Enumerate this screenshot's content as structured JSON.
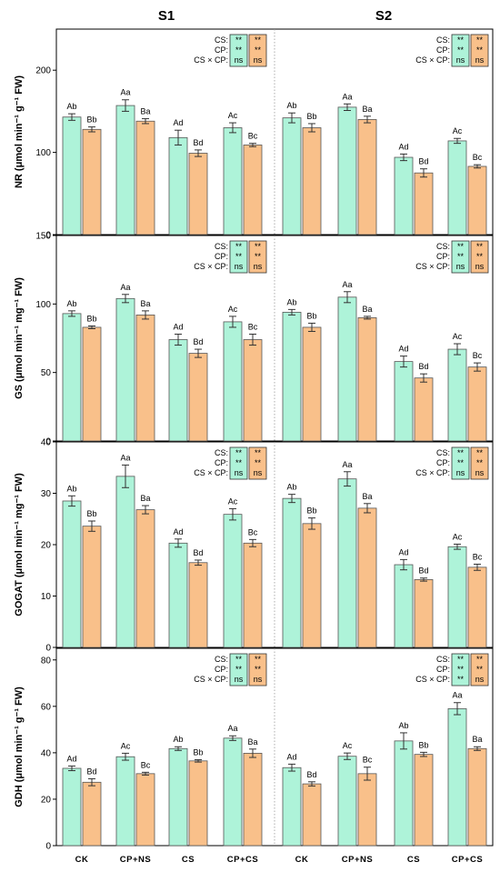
{
  "scenarios": [
    "S1",
    "S2"
  ],
  "categories": [
    "CK",
    "CP+NS",
    "CS",
    "CP+CS"
  ],
  "colors": {
    "series1": "#aef3d9",
    "series2": "#f9c08a",
    "series1_box": "#aef3d9",
    "series2_box": "#f9c08a"
  },
  "chart_data": [
    {
      "type": "bar",
      "ylabel": "NR (μmol min⁻¹ g⁻¹ FW)",
      "ylim": [
        0,
        250
      ],
      "yticks": [
        0,
        100,
        200
      ],
      "significance": {
        "labels": [
          "CS:",
          "CP:",
          "CS × CP:"
        ],
        "S1": {
          "series1": [
            "**",
            "**",
            "ns"
          ],
          "series2": [
            "**",
            "**",
            "ns"
          ]
        },
        "S2": {
          "series1": [
            "**",
            "**",
            "ns"
          ],
          "series2": [
            "**",
            "**",
            "ns"
          ]
        }
      },
      "S1": {
        "series1": {
          "values": [
            143,
            157,
            118,
            130
          ],
          "err": [
            4,
            7,
            9,
            6
          ],
          "labels": [
            "Ab",
            "Aa",
            "Ad",
            "Ac"
          ]
        },
        "series2": {
          "values": [
            128,
            138,
            99,
            109
          ],
          "err": [
            3,
            3,
            4,
            2
          ],
          "labels": [
            "Bb",
            "Ba",
            "Bd",
            "Bc"
          ]
        }
      },
      "S2": {
        "series1": {
          "values": [
            142,
            155,
            94,
            114
          ],
          "err": [
            6,
            4,
            4,
            3
          ],
          "labels": [
            "Ab",
            "Aa",
            "Ad",
            "Ac"
          ]
        },
        "series2": {
          "values": [
            130,
            140,
            75,
            83
          ],
          "err": [
            5,
            4,
            5,
            2
          ],
          "labels": [
            "Bb",
            "Ba",
            "Bd",
            "Bc"
          ]
        }
      }
    },
    {
      "type": "bar",
      "ylabel": "GS (μmol min⁻¹ mg⁻¹ FW)",
      "ylim": [
        0,
        150
      ],
      "yticks": [
        0,
        50,
        100,
        150
      ],
      "significance": {
        "labels": [
          "CS:",
          "CP:",
          "CS × CP:"
        ],
        "S1": {
          "series1": [
            "**",
            "**",
            "ns"
          ],
          "series2": [
            "**",
            "**",
            "ns"
          ]
        },
        "S2": {
          "series1": [
            "**",
            "**",
            "ns"
          ],
          "series2": [
            "**",
            "**",
            "ns"
          ]
        }
      },
      "S1": {
        "series1": {
          "values": [
            93,
            104,
            74,
            87
          ],
          "err": [
            2,
            3,
            4,
            4
          ],
          "labels": [
            "Ab",
            "Aa",
            "Ad",
            "Ac"
          ]
        },
        "series2": {
          "values": [
            83,
            92,
            64,
            74
          ],
          "err": [
            1,
            3,
            3,
            4
          ],
          "labels": [
            "Bb",
            "Ba",
            "Bd",
            "Bc"
          ]
        }
      },
      "S2": {
        "series1": {
          "values": [
            94,
            105,
            58,
            67
          ],
          "err": [
            2,
            4,
            4,
            4
          ],
          "labels": [
            "Ab",
            "Aa",
            "Ad",
            "Ac"
          ]
        },
        "series2": {
          "values": [
            83,
            90,
            46,
            54
          ],
          "err": [
            3,
            1,
            3,
            3
          ],
          "labels": [
            "Bb",
            "Ba",
            "Bd",
            "Bc"
          ]
        }
      }
    },
    {
      "type": "bar",
      "ylabel": "GOGAT (μmol min⁻¹ mg⁻¹ FW)",
      "ylim": [
        0,
        40
      ],
      "yticks": [
        0,
        10,
        20,
        30,
        40
      ],
      "significance": {
        "labels": [
          "CS:",
          "CP:",
          "CS × CP:"
        ],
        "S1": {
          "series1": [
            "**",
            "**",
            "ns"
          ],
          "series2": [
            "**",
            "**",
            "ns"
          ]
        },
        "S2": {
          "series1": [
            "**",
            "**",
            "ns"
          ],
          "series2": [
            "**",
            "**",
            "ns"
          ]
        }
      },
      "S1": {
        "series1": {
          "values": [
            28.5,
            33.3,
            20.3,
            25.9
          ],
          "err": [
            1,
            2.2,
            0.8,
            1.1
          ],
          "labels": [
            "Ab",
            "Aa",
            "Ad",
            "Ac"
          ]
        },
        "series2": {
          "values": [
            23.6,
            26.8,
            16.5,
            20.3
          ],
          "err": [
            1,
            0.8,
            0.5,
            0.7
          ],
          "labels": [
            "Bb",
            "Ba",
            "Bd",
            "Bc"
          ]
        }
      },
      "S2": {
        "series1": {
          "values": [
            29.0,
            32.8,
            16.1,
            19.6
          ],
          "err": [
            0.8,
            1.4,
            1,
            0.5
          ],
          "labels": [
            "Ab",
            "Aa",
            "Ad",
            "Ac"
          ]
        },
        "series2": {
          "values": [
            24.1,
            27.1,
            13.2,
            15.6
          ],
          "err": [
            1.1,
            0.9,
            0.3,
            0.6
          ],
          "labels": [
            "Bb",
            "Ba",
            "Bd",
            "Bc"
          ]
        }
      }
    },
    {
      "type": "bar",
      "ylabel": "GDH (μmol min⁻¹ g⁻¹ FW)",
      "ylim": [
        0,
        85
      ],
      "yticks": [
        0,
        20,
        40,
        60,
        80
      ],
      "significance": {
        "labels": [
          "CS:",
          "CP:",
          "CS × CP:"
        ],
        "S1": {
          "series1": [
            "**",
            "**",
            "ns"
          ],
          "series2": [
            "**",
            "**",
            "ns"
          ]
        },
        "S2": {
          "series1": [
            "**",
            "**",
            "**"
          ],
          "series2": [
            "**",
            "**",
            "ns"
          ]
        }
      },
      "S1": {
        "series1": {
          "values": [
            33.3,
            38.3,
            41.8,
            46.3
          ],
          "err": [
            1,
            1.5,
            0.8,
            1
          ],
          "labels": [
            "Ad",
            "Ac",
            "Ab",
            "Aa"
          ]
        },
        "series2": {
          "values": [
            27.3,
            31.0,
            36.5,
            39.8
          ],
          "err": [
            1.5,
            0.6,
            0.5,
            1.8
          ],
          "labels": [
            "Bd",
            "Bc",
            "Bb",
            "Ba"
          ]
        }
      },
      "S2": {
        "series1": {
          "values": [
            33.6,
            38.5,
            45.1,
            59.0
          ],
          "err": [
            1.5,
            1.4,
            3.5,
            2.6
          ],
          "labels": [
            "Ad",
            "Ac",
            "Ab",
            "Aa"
          ]
        },
        "series2": {
          "values": [
            26.6,
            31.0,
            39.3,
            41.8
          ],
          "err": [
            0.9,
            2.8,
            0.9,
            0.8
          ],
          "labels": [
            "Bd",
            "Bc",
            "Bb",
            "Ba"
          ]
        }
      }
    }
  ]
}
